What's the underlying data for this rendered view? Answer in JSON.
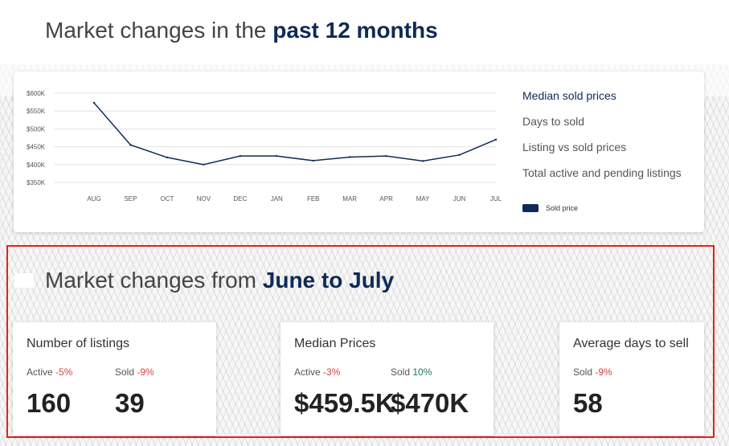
{
  "section1": {
    "title_prefix": "Market changes in the ",
    "title_strong": "past 12 months"
  },
  "chart_panel": {
    "menu": [
      {
        "label": "Median sold prices",
        "active": true
      },
      {
        "label": "Days to sold",
        "active": false
      },
      {
        "label": "Listing vs sold prices",
        "active": false
      },
      {
        "label": "Total active and pending listings",
        "active": false
      }
    ],
    "legend_label": "Sold price"
  },
  "chart_data": {
    "type": "line",
    "categories": [
      "AUG",
      "SEP",
      "OCT",
      "NOV",
      "DEC",
      "JAN",
      "FEB",
      "MAR",
      "APR",
      "MAY",
      "JUN",
      "JUL"
    ],
    "series": [
      {
        "name": "Sold price",
        "values": [
          573,
          455,
          420,
          400,
          424,
          424,
          411,
          421,
          424,
          410,
          427,
          470
        ]
      }
    ],
    "y_ticks": [
      350,
      400,
      450,
      500,
      550,
      600
    ],
    "y_tick_labels": [
      "$350K",
      "$400K",
      "$450K",
      "$500K",
      "$550K",
      "$600K"
    ],
    "ylim": [
      350,
      600
    ],
    "grid": true,
    "line_color": "#0f2a55"
  },
  "section2": {
    "title_prefix": "Market changes from ",
    "title_strong": "June to July"
  },
  "cards": {
    "listings": {
      "title": "Number of listings",
      "active_label": "Active",
      "active_change": "-5%",
      "sold_label": "Sold",
      "sold_change": "-9%",
      "active_value": "160",
      "sold_value": "39"
    },
    "prices": {
      "title": "Median Prices",
      "active_label": "Active",
      "active_change": "-3%",
      "sold_label": "Sold",
      "sold_change": "10%",
      "active_value": "$459.5K",
      "sold_value": "$470K"
    },
    "days": {
      "title": "Average days to sell",
      "sold_label": "Sold",
      "sold_change": "-9%",
      "sold_value": "58"
    }
  },
  "colors": {
    "navy": "#0f2a55",
    "negative": "#e0413a",
    "positive": "#1e7a5a",
    "highlight": "#e0241b"
  }
}
